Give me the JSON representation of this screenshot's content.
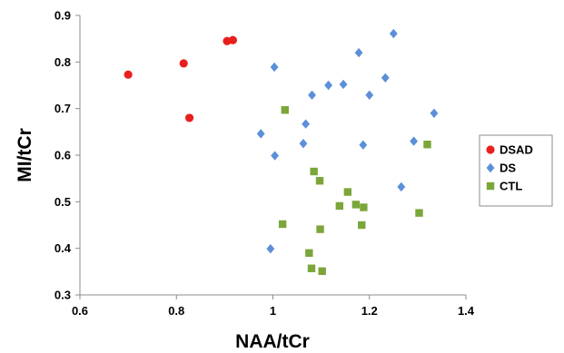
{
  "chart_data": {
    "type": "scatter",
    "title": "",
    "xlabel": "NAA/tCr",
    "ylabel": "MI/tCr",
    "xlim": [
      0.6,
      1.4
    ],
    "ylim": [
      0.3,
      0.9
    ],
    "xticks": [
      "0.6",
      "0.8",
      "1",
      "1.2",
      "1.4"
    ],
    "yticks": [
      "0.3",
      "0.4",
      "0.5",
      "0.6",
      "0.7",
      "0.8",
      "0.9"
    ],
    "grid": false,
    "legend_position": "right",
    "series": [
      {
        "name": "DSAD",
        "marker": "circle",
        "color": "#e8201d",
        "points": [
          [
            0.7,
            0.773
          ],
          [
            0.815,
            0.797
          ],
          [
            0.827,
            0.68
          ],
          [
            0.905,
            0.845
          ],
          [
            0.917,
            0.847
          ]
        ]
      },
      {
        "name": "DS",
        "marker": "diamond",
        "color": "#5b8fd8",
        "points": [
          [
            0.975,
            0.646
          ],
          [
            0.995,
            0.399
          ],
          [
            1.003,
            0.789
          ],
          [
            1.004,
            0.599
          ],
          [
            1.063,
            0.625
          ],
          [
            1.068,
            0.667
          ],
          [
            1.081,
            0.729
          ],
          [
            1.115,
            0.75
          ],
          [
            1.146,
            0.752
          ],
          [
            1.178,
            0.82
          ],
          [
            1.187,
            0.622
          ],
          [
            1.2,
            0.729
          ],
          [
            1.233,
            0.766
          ],
          [
            1.25,
            0.861
          ],
          [
            1.266,
            0.532
          ],
          [
            1.292,
            0.63
          ],
          [
            1.334,
            0.69
          ]
        ]
      },
      {
        "name": "CTL",
        "marker": "square",
        "color": "#7aa63a",
        "points": [
          [
            1.02,
            0.452
          ],
          [
            1.025,
            0.697
          ],
          [
            1.075,
            0.39
          ],
          [
            1.08,
            0.357
          ],
          [
            1.085,
            0.565
          ],
          [
            1.097,
            0.545
          ],
          [
            1.098,
            0.441
          ],
          [
            1.102,
            0.351
          ],
          [
            1.138,
            0.491
          ],
          [
            1.155,
            0.521
          ],
          [
            1.172,
            0.494
          ],
          [
            1.184,
            0.45
          ],
          [
            1.188,
            0.488
          ],
          [
            1.303,
            0.476
          ],
          [
            1.32,
            0.623
          ]
        ]
      }
    ]
  }
}
